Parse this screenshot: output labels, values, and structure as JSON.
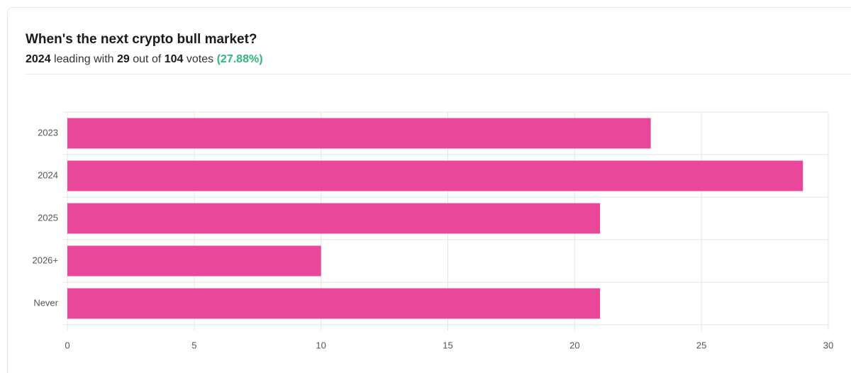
{
  "chart_data": {
    "type": "bar",
    "orientation": "horizontal",
    "title": "When's the next crypto bull market?",
    "summary": {
      "leader": "2024",
      "leader_text": "leading with",
      "leader_votes": 29,
      "out_of_text": "out of",
      "total_votes": 104,
      "votes_text": "votes",
      "share": "(27.88%)"
    },
    "categories": [
      "2023",
      "2024",
      "2025",
      "2026+",
      "Never"
    ],
    "values": [
      23,
      29,
      21,
      10,
      21
    ],
    "color": "#e9489a",
    "xlim": [
      0,
      30
    ],
    "xticks": [
      0,
      5,
      10,
      15,
      20,
      25,
      30
    ],
    "grid": true
  }
}
